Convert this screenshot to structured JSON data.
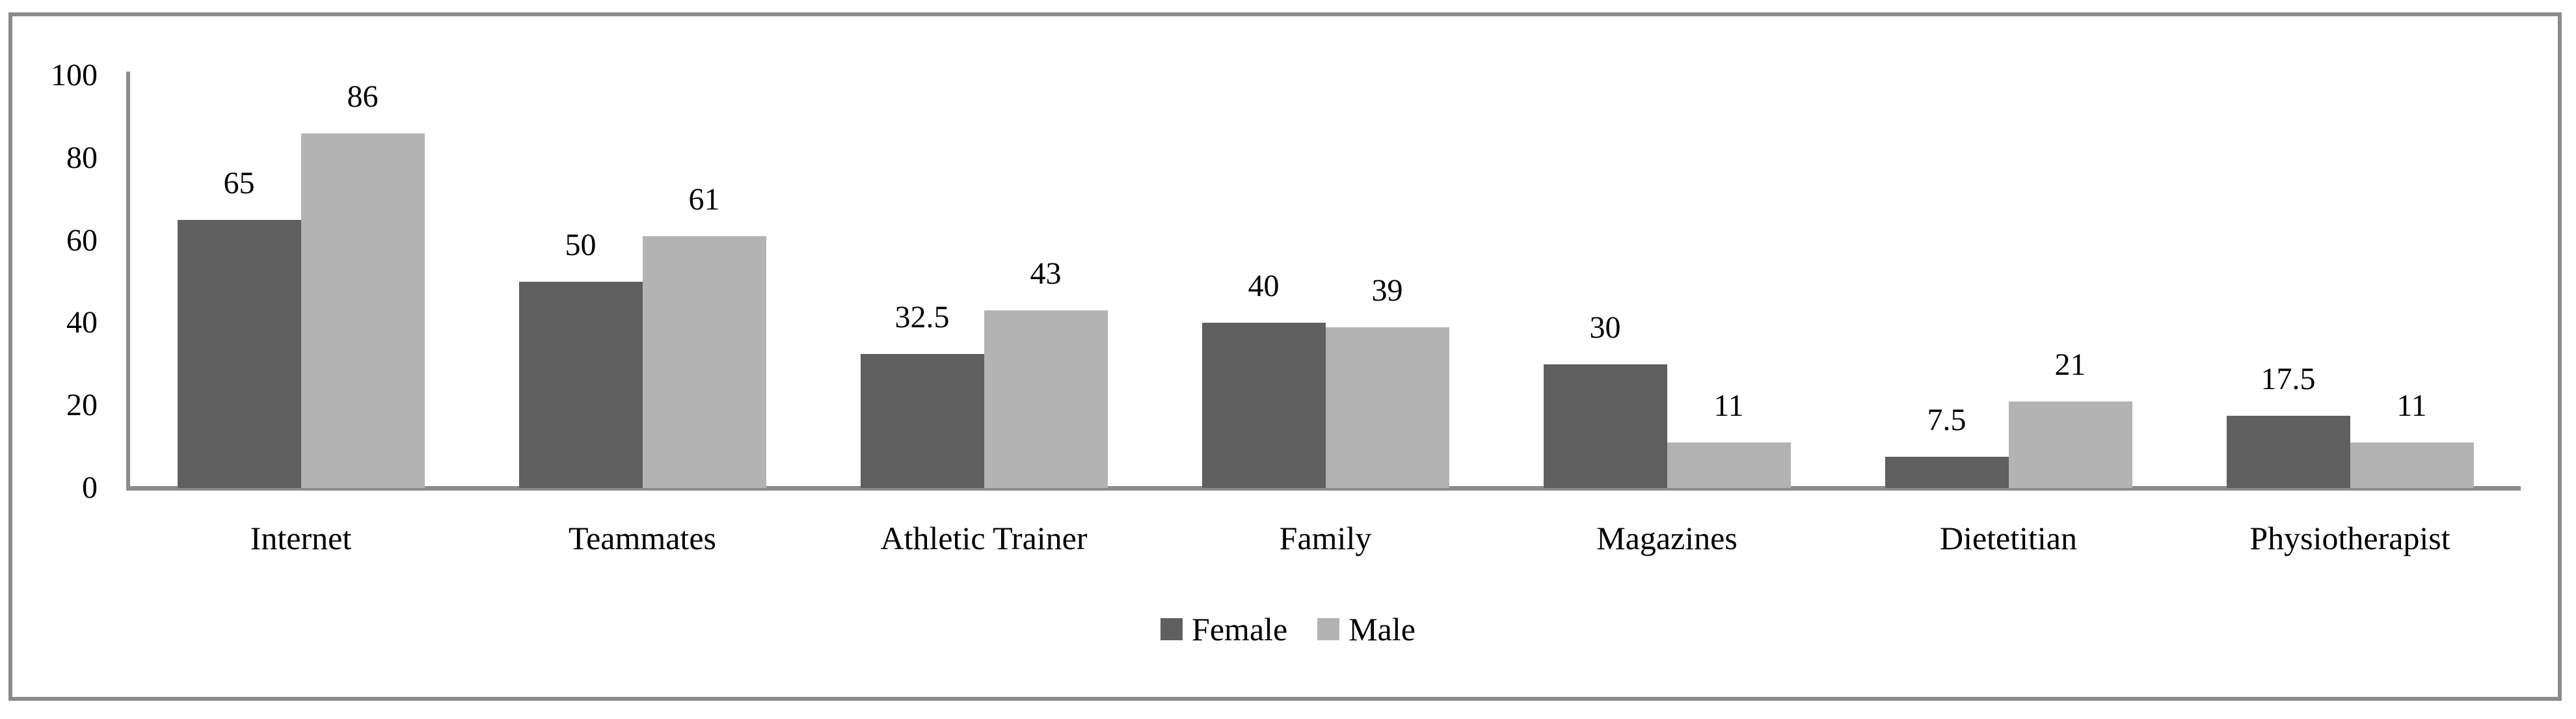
{
  "chart_data": {
    "type": "bar",
    "title": "",
    "xlabel": "",
    "ylabel": "",
    "categories": [
      "Internet",
      "Teammates",
      "Athletic Trainer",
      "Family",
      "Magazines",
      "Dietetitian",
      "Physiotherapist"
    ],
    "series": [
      {
        "name": "Female",
        "color": "#5f5f5f",
        "values": [
          65,
          50,
          32.5,
          40,
          30,
          7.5,
          17.5
        ]
      },
      {
        "name": "Male",
        "color": "#b3b3b3",
        "values": [
          86,
          61,
          43,
          39,
          11,
          21,
          11
        ]
      }
    ],
    "ylim": [
      0,
      100
    ],
    "yticks": [
      0,
      20,
      40,
      60,
      80,
      100
    ],
    "ytick_labels": [
      "0",
      "20",
      "40",
      "60",
      "80",
      "100"
    ],
    "grid": false,
    "legend_position": "bottom-center",
    "axis_color": "#8c8c8c",
    "border_color": "#8c8c8c",
    "background_color": "#ffffff",
    "value_labels_shown": true
  }
}
